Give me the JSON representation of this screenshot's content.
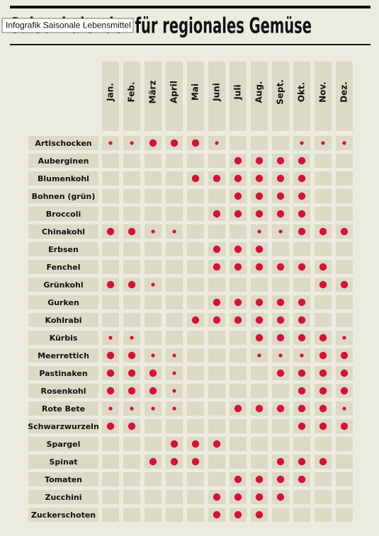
{
  "title": "Saisonkalender für regionales Gemüse",
  "tooltip": "Infografik Saisonale Lebensmittel",
  "table": {
    "columns": [
      "Jan.",
      "Feb.",
      "März",
      "April",
      "Mai",
      "Juni",
      "Juli",
      "Aug.",
      "Sept.",
      "Okt.",
      "Nov.",
      "Dez."
    ],
    "rows": [
      {
        "name": "Artischocken",
        "values": [
          1,
          1,
          2,
          2,
          2,
          1,
          0,
          0,
          0,
          1,
          1,
          1
        ]
      },
      {
        "name": "Auberginen",
        "values": [
          0,
          0,
          0,
          0,
          0,
          0,
          2,
          2,
          2,
          2,
          0,
          0
        ]
      },
      {
        "name": "Blumenkohl",
        "values": [
          0,
          0,
          0,
          0,
          2,
          2,
          2,
          2,
          2,
          2,
          0,
          0
        ]
      },
      {
        "name": "Bohnen (grün)",
        "values": [
          0,
          0,
          0,
          0,
          0,
          0,
          2,
          2,
          2,
          2,
          0,
          0
        ]
      },
      {
        "name": "Broccoli",
        "values": [
          0,
          0,
          0,
          0,
          0,
          2,
          2,
          2,
          2,
          2,
          0,
          0
        ]
      },
      {
        "name": "Chinakohl",
        "values": [
          2,
          2,
          1,
          1,
          0,
          0,
          0,
          1,
          1,
          2,
          2,
          2
        ]
      },
      {
        "name": "Erbsen",
        "values": [
          0,
          0,
          0,
          0,
          0,
          2,
          2,
          2,
          0,
          0,
          0,
          0
        ]
      },
      {
        "name": "Fenchel",
        "values": [
          0,
          0,
          0,
          0,
          0,
          2,
          2,
          2,
          2,
          2,
          2,
          0
        ]
      },
      {
        "name": "Grünkohl",
        "values": [
          2,
          2,
          1,
          0,
          0,
          0,
          0,
          0,
          0,
          0,
          2,
          2
        ]
      },
      {
        "name": "Gurken",
        "values": [
          0,
          0,
          0,
          0,
          0,
          2,
          2,
          2,
          2,
          2,
          0,
          0
        ]
      },
      {
        "name": "Kohlrabi",
        "values": [
          0,
          0,
          0,
          0,
          2,
          2,
          2,
          2,
          2,
          2,
          0,
          0
        ]
      },
      {
        "name": "Kürbis",
        "values": [
          1,
          1,
          0,
          0,
          0,
          0,
          0,
          2,
          2,
          2,
          2,
          1
        ]
      },
      {
        "name": "Meerrettich",
        "values": [
          2,
          2,
          1,
          1,
          0,
          0,
          0,
          1,
          1,
          1,
          2,
          2
        ]
      },
      {
        "name": "Pastinaken",
        "values": [
          2,
          2,
          2,
          1,
          0,
          0,
          0,
          0,
          2,
          2,
          2,
          2
        ]
      },
      {
        "name": "Rosenkohl",
        "values": [
          2,
          2,
          2,
          1,
          0,
          0,
          0,
          0,
          0,
          2,
          2,
          2
        ]
      },
      {
        "name": "Rote Bete",
        "values": [
          1,
          1,
          1,
          1,
          0,
          0,
          2,
          2,
          2,
          2,
          2,
          1
        ]
      },
      {
        "name": "Schwarzwurzeln",
        "values": [
          2,
          2,
          0,
          0,
          0,
          0,
          0,
          0,
          0,
          2,
          2,
          2
        ]
      },
      {
        "name": "Spargel",
        "values": [
          0,
          0,
          0,
          2,
          2,
          2,
          0,
          0,
          0,
          0,
          0,
          0
        ]
      },
      {
        "name": "Spinat",
        "values": [
          0,
          0,
          2,
          2,
          2,
          0,
          0,
          0,
          2,
          2,
          2,
          0
        ]
      },
      {
        "name": "Tomaten",
        "values": [
          0,
          0,
          0,
          0,
          0,
          0,
          2,
          2,
          2,
          2,
          0,
          0
        ]
      },
      {
        "name": "Zucchini",
        "values": [
          0,
          0,
          0,
          0,
          0,
          2,
          2,
          2,
          2,
          0,
          0,
          0
        ]
      },
      {
        "name": "Zuckerschoten",
        "values": [
          0,
          0,
          0,
          0,
          0,
          2,
          2,
          2,
          0,
          0,
          0,
          0
        ]
      }
    ]
  }
}
